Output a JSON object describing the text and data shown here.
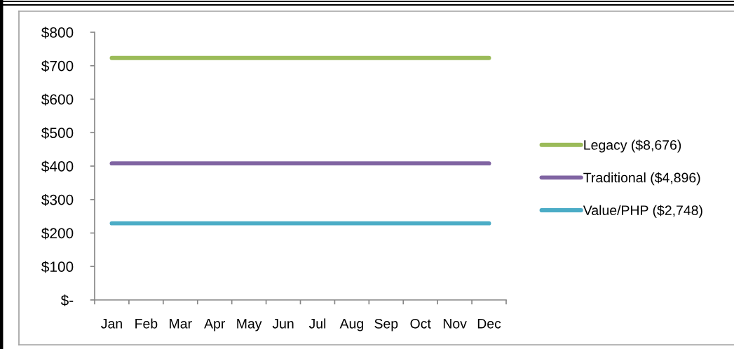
{
  "chart_data": {
    "type": "line",
    "categories": [
      "Jan",
      "Feb",
      "Mar",
      "Apr",
      "May",
      "Jun",
      "Jul",
      "Aug",
      "Sep",
      "Oct",
      "Nov",
      "Dec"
    ],
    "series": [
      {
        "name": "Legacy ($8,676)",
        "color": "#9bbb59",
        "values": [
          723,
          723,
          723,
          723,
          723,
          723,
          723,
          723,
          723,
          723,
          723,
          723
        ]
      },
      {
        "name": "Traditional ($4,896)",
        "color": "#8064a2",
        "values": [
          408,
          408,
          408,
          408,
          408,
          408,
          408,
          408,
          408,
          408,
          408,
          408
        ]
      },
      {
        "name": "Value/PHP ($2,748)",
        "color": "#4bacc6",
        "values": [
          229,
          229,
          229,
          229,
          229,
          229,
          229,
          229,
          229,
          229,
          229,
          229
        ]
      }
    ],
    "ylim": [
      0,
      800
    ],
    "yticks": [
      {
        "value": 0,
        "label": "$-"
      },
      {
        "value": 100,
        "label": "$100"
      },
      {
        "value": 200,
        "label": "$200"
      },
      {
        "value": 300,
        "label": "$300"
      },
      {
        "value": 400,
        "label": "$400"
      },
      {
        "value": 500,
        "label": "$500"
      },
      {
        "value": 600,
        "label": "$600"
      },
      {
        "value": 700,
        "label": "$700"
      },
      {
        "value": 800,
        "label": "$800"
      }
    ],
    "legend": "right"
  }
}
